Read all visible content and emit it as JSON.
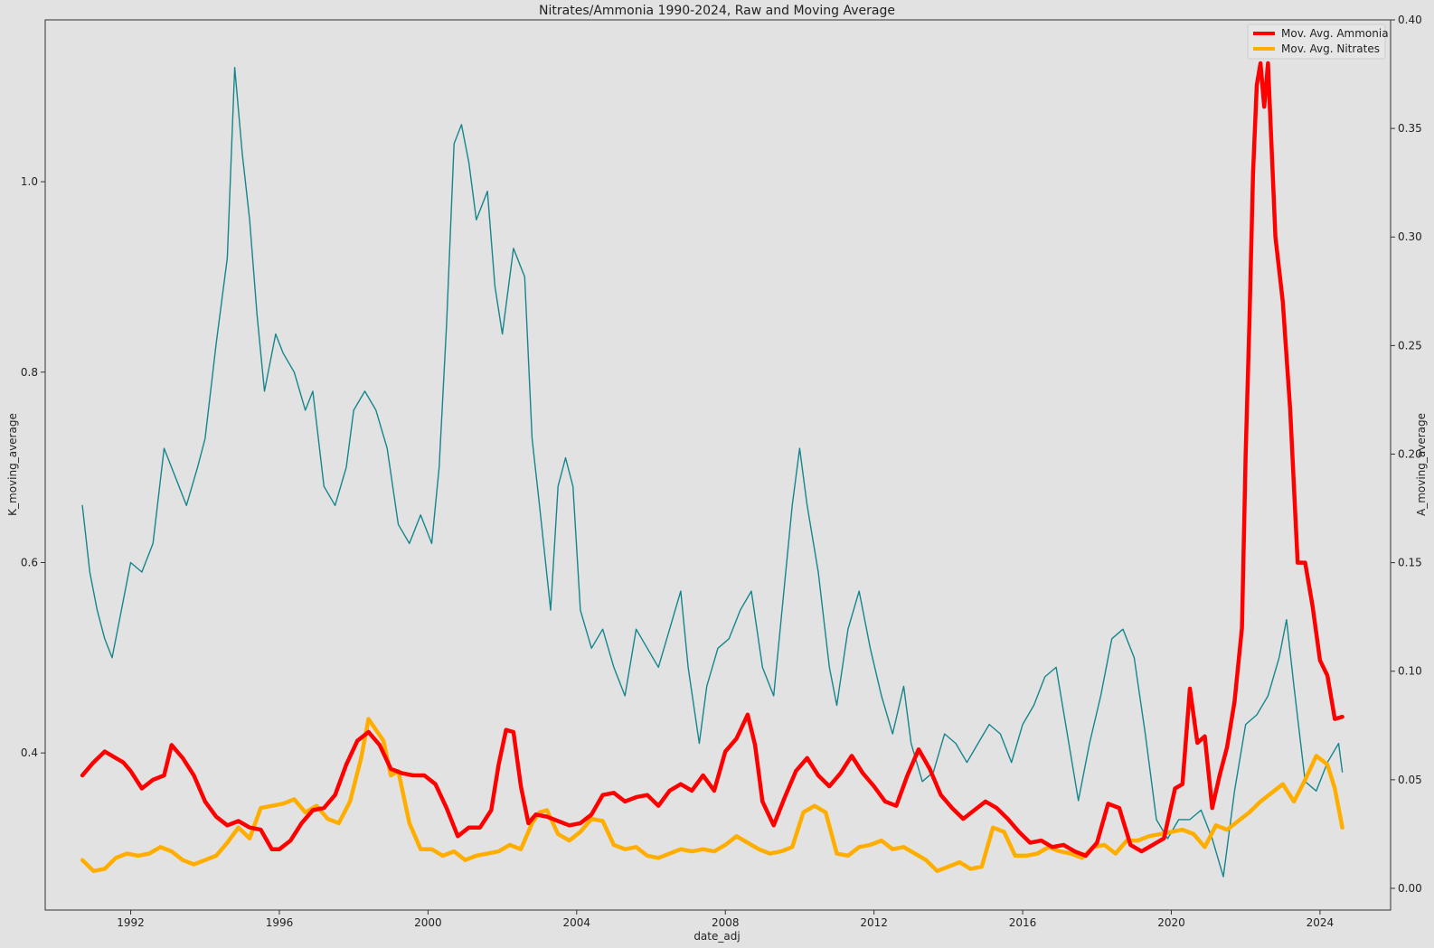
{
  "chart_data": {
    "type": "line",
    "title": "Nitrates/Ammonia 1990-2024, Raw and Moving Average",
    "xlabel": "date_adj",
    "ylabel_left": "K_moving_average",
    "ylabel_right": "A_moving_average",
    "xlim": [
      1989.7,
      2025.9
    ],
    "ylim_left": [
      0.235,
      1.17
    ],
    "ylim_right": [
      -0.01,
      0.4
    ],
    "x_ticks": [
      "1992",
      "1996",
      "2000",
      "2004",
      "2008",
      "2012",
      "2016",
      "2020",
      "2024"
    ],
    "y_left_ticks": [
      "0.4",
      "0.6",
      "0.8",
      "1.0"
    ],
    "y_right_ticks": [
      "0.00",
      "0.05",
      "0.10",
      "0.15",
      "0.20",
      "0.25",
      "0.30",
      "0.35",
      "0.40"
    ],
    "grid": false,
    "legend_position": "top-right",
    "colors": {
      "background": "#e2e2e2",
      "k_raw": "#14868c",
      "ammonia": "#ff0000",
      "nitrates": "#ffae00"
    },
    "series": [
      {
        "key": "k_raw",
        "axis": "left",
        "x": [
          1990.7,
          1990.9,
          1991.1,
          1991.3,
          1991.5,
          1991.7,
          1992.0,
          1992.3,
          1992.6,
          1992.9,
          1993.2,
          1993.5,
          1993.8,
          1994.0,
          1994.3,
          1994.6,
          1994.8,
          1995.0,
          1995.2,
          1995.4,
          1995.6,
          1995.9,
          1996.1,
          1996.4,
          1996.7,
          1996.9,
          1997.2,
          1997.5,
          1997.8,
          1998.0,
          1998.3,
          1998.6,
          1998.9,
          1999.2,
          1999.5,
          1999.8,
          2000.1,
          2000.3,
          2000.5,
          2000.7,
          2000.9,
          2001.1,
          2001.3,
          2001.6,
          2001.8,
          2002.0,
          2002.3,
          2002.6,
          2002.8,
          2003.0,
          2003.3,
          2003.5,
          2003.7,
          2003.9,
          2004.1,
          2004.4,
          2004.7,
          2005.0,
          2005.3,
          2005.6,
          2005.9,
          2006.2,
          2006.5,
          2006.8,
          2007.0,
          2007.3,
          2007.5,
          2007.8,
          2008.1,
          2008.4,
          2008.7,
          2009.0,
          2009.3,
          2009.6,
          2009.8,
          2010.0,
          2010.2,
          2010.5,
          2010.8,
          2011.0,
          2011.3,
          2011.6,
          2011.9,
          2012.2,
          2012.5,
          2012.8,
          2013.0,
          2013.3,
          2013.6,
          2013.9,
          2014.2,
          2014.5,
          2014.8,
          2015.1,
          2015.4,
          2015.7,
          2016.0,
          2016.3,
          2016.6,
          2016.9,
          2017.2,
          2017.5,
          2017.8,
          2018.1,
          2018.4,
          2018.7,
          2019.0,
          2019.3,
          2019.6,
          2019.9,
          2020.2,
          2020.5,
          2020.8,
          2021.1,
          2021.4,
          2021.7,
          2022.0,
          2022.3,
          2022.6,
          2022.9,
          2023.1,
          2023.3,
          2023.6,
          2023.9,
          2024.2,
          2024.5,
          2024.6
        ],
        "y": [
          0.66,
          0.59,
          0.55,
          0.52,
          0.5,
          0.54,
          0.6,
          0.59,
          0.62,
          0.72,
          0.69,
          0.66,
          0.7,
          0.73,
          0.83,
          0.92,
          1.12,
          1.03,
          0.96,
          0.86,
          0.78,
          0.84,
          0.82,
          0.8,
          0.76,
          0.78,
          0.68,
          0.66,
          0.7,
          0.76,
          0.78,
          0.76,
          0.72,
          0.64,
          0.62,
          0.65,
          0.62,
          0.7,
          0.85,
          1.04,
          1.06,
          1.02,
          0.96,
          0.99,
          0.89,
          0.84,
          0.93,
          0.9,
          0.73,
          0.66,
          0.55,
          0.68,
          0.71,
          0.68,
          0.55,
          0.51,
          0.53,
          0.49,
          0.46,
          0.53,
          0.51,
          0.49,
          0.53,
          0.57,
          0.49,
          0.41,
          0.47,
          0.51,
          0.52,
          0.55,
          0.57,
          0.49,
          0.46,
          0.58,
          0.66,
          0.72,
          0.66,
          0.59,
          0.49,
          0.45,
          0.53,
          0.57,
          0.51,
          0.46,
          0.42,
          0.47,
          0.41,
          0.37,
          0.38,
          0.42,
          0.41,
          0.39,
          0.41,
          0.43,
          0.42,
          0.39,
          0.43,
          0.45,
          0.48,
          0.49,
          0.42,
          0.35,
          0.41,
          0.46,
          0.52,
          0.53,
          0.5,
          0.42,
          0.33,
          0.31,
          0.33,
          0.33,
          0.34,
          0.31,
          0.27,
          0.36,
          0.43,
          0.44,
          0.46,
          0.5,
          0.54,
          0.47,
          0.37,
          0.36,
          0.39,
          0.41,
          0.38
        ]
      },
      {
        "name": "Mov. Avg. Ammonia",
        "key": "ammonia",
        "axis": "right",
        "x": [
          1990.7,
          1991.0,
          1991.3,
          1991.6,
          1991.8,
          1992.0,
          1992.3,
          1992.6,
          1992.9,
          1993.1,
          1993.4,
          1993.7,
          1994.0,
          1994.3,
          1994.6,
          1994.9,
          1995.2,
          1995.5,
          1995.8,
          1996.0,
          1996.3,
          1996.6,
          1996.9,
          1997.2,
          1997.5,
          1997.8,
          1998.1,
          1998.4,
          1998.7,
          1999.0,
          1999.3,
          1999.6,
          1999.9,
          2000.2,
          2000.5,
          2000.8,
          2001.1,
          2001.4,
          2001.7,
          2001.9,
          2002.1,
          2002.3,
          2002.5,
          2002.7,
          2002.9,
          2003.2,
          2003.5,
          2003.8,
          2004.1,
          2004.4,
          2004.7,
          2005.0,
          2005.3,
          2005.6,
          2005.9,
          2006.2,
          2006.5,
          2006.8,
          2007.1,
          2007.4,
          2007.7,
          2008.0,
          2008.3,
          2008.6,
          2008.8,
          2009.0,
          2009.3,
          2009.6,
          2009.9,
          2010.2,
          2010.5,
          2010.8,
          2011.1,
          2011.4,
          2011.7,
          2012.0,
          2012.3,
          2012.6,
          2012.9,
          2013.2,
          2013.5,
          2013.8,
          2014.1,
          2014.4,
          2014.7,
          2015.0,
          2015.3,
          2015.6,
          2015.9,
          2016.2,
          2016.5,
          2016.8,
          2017.1,
          2017.4,
          2017.7,
          2018.0,
          2018.3,
          2018.6,
          2018.9,
          2019.2,
          2019.5,
          2019.8,
          2020.1,
          2020.3,
          2020.5,
          2020.7,
          2020.9,
          2021.1,
          2021.3,
          2021.5,
          2021.7,
          2021.9,
          2022.0,
          2022.1,
          2022.2,
          2022.3,
          2022.4,
          2022.5,
          2022.6,
          2022.8,
          2023.0,
          2023.2,
          2023.4,
          2023.6,
          2023.8,
          2024.0,
          2024.2,
          2024.4,
          2024.6
        ],
        "y": [
          0.052,
          0.058,
          0.063,
          0.06,
          0.058,
          0.054,
          0.046,
          0.05,
          0.052,
          0.066,
          0.06,
          0.052,
          0.04,
          0.033,
          0.029,
          0.031,
          0.028,
          0.027,
          0.018,
          0.018,
          0.022,
          0.03,
          0.036,
          0.037,
          0.043,
          0.057,
          0.068,
          0.072,
          0.066,
          0.055,
          0.053,
          0.052,
          0.052,
          0.048,
          0.037,
          0.024,
          0.028,
          0.028,
          0.036,
          0.057,
          0.073,
          0.072,
          0.047,
          0.03,
          0.034,
          0.033,
          0.031,
          0.029,
          0.03,
          0.034,
          0.043,
          0.044,
          0.04,
          0.042,
          0.043,
          0.038,
          0.045,
          0.048,
          0.045,
          0.052,
          0.045,
          0.063,
          0.069,
          0.08,
          0.066,
          0.04,
          0.029,
          0.042,
          0.054,
          0.06,
          0.052,
          0.047,
          0.053,
          0.061,
          0.053,
          0.047,
          0.04,
          0.038,
          0.052,
          0.064,
          0.055,
          0.043,
          0.037,
          0.032,
          0.036,
          0.04,
          0.037,
          0.032,
          0.026,
          0.021,
          0.022,
          0.019,
          0.02,
          0.017,
          0.015,
          0.021,
          0.039,
          0.037,
          0.02,
          0.017,
          0.02,
          0.023,
          0.046,
          0.048,
          0.092,
          0.067,
          0.07,
          0.037,
          0.052,
          0.065,
          0.086,
          0.12,
          0.2,
          0.26,
          0.33,
          0.37,
          0.38,
          0.36,
          0.38,
          0.3,
          0.27,
          0.22,
          0.15,
          0.15,
          0.13,
          0.105,
          0.098,
          0.078,
          0.079
        ]
      },
      {
        "name": "Mov. Avg. Nitrates",
        "key": "nitrates",
        "axis": "right",
        "x": [
          1990.7,
          1991.0,
          1991.3,
          1991.6,
          1991.9,
          1992.2,
          1992.5,
          1992.8,
          1993.1,
          1993.4,
          1993.7,
          1994.0,
          1994.3,
          1994.6,
          1994.9,
          1995.2,
          1995.5,
          1995.8,
          1996.1,
          1996.4,
          1996.7,
          1997.0,
          1997.3,
          1997.6,
          1997.9,
          1998.2,
          1998.4,
          1998.6,
          1998.8,
          1999.0,
          1999.2,
          1999.5,
          1999.8,
          2000.1,
          2000.4,
          2000.7,
          2001.0,
          2001.3,
          2001.6,
          2001.9,
          2002.2,
          2002.5,
          2002.8,
          2003.0,
          2003.2,
          2003.5,
          2003.8,
          2004.1,
          2004.4,
          2004.7,
          2005.0,
          2005.3,
          2005.6,
          2005.9,
          2006.2,
          2006.5,
          2006.8,
          2007.1,
          2007.4,
          2007.7,
          2008.0,
          2008.3,
          2008.6,
          2008.9,
          2009.2,
          2009.5,
          2009.8,
          2010.1,
          2010.4,
          2010.7,
          2011.0,
          2011.3,
          2011.6,
          2011.9,
          2012.2,
          2012.5,
          2012.8,
          2013.1,
          2013.4,
          2013.7,
          2014.0,
          2014.3,
          2014.6,
          2014.9,
          2015.2,
          2015.5,
          2015.8,
          2016.1,
          2016.4,
          2016.7,
          2017.0,
          2017.3,
          2017.6,
          2017.9,
          2018.2,
          2018.5,
          2018.8,
          2019.1,
          2019.4,
          2019.7,
          2020.0,
          2020.3,
          2020.6,
          2020.9,
          2021.2,
          2021.5,
          2021.8,
          2022.1,
          2022.4,
          2022.7,
          2023.0,
          2023.3,
          2023.6,
          2023.9,
          2024.2,
          2024.4,
          2024.6
        ],
        "y": [
          0.013,
          0.008,
          0.009,
          0.014,
          0.016,
          0.015,
          0.016,
          0.019,
          0.017,
          0.013,
          0.011,
          0.013,
          0.015,
          0.021,
          0.028,
          0.023,
          0.037,
          0.038,
          0.039,
          0.041,
          0.035,
          0.038,
          0.032,
          0.03,
          0.04,
          0.06,
          0.078,
          0.073,
          0.068,
          0.052,
          0.054,
          0.03,
          0.018,
          0.018,
          0.015,
          0.017,
          0.013,
          0.015,
          0.016,
          0.017,
          0.02,
          0.018,
          0.03,
          0.035,
          0.036,
          0.025,
          0.022,
          0.026,
          0.032,
          0.031,
          0.02,
          0.018,
          0.019,
          0.015,
          0.014,
          0.016,
          0.018,
          0.017,
          0.018,
          0.017,
          0.02,
          0.024,
          0.021,
          0.018,
          0.016,
          0.017,
          0.019,
          0.035,
          0.038,
          0.035,
          0.016,
          0.015,
          0.019,
          0.02,
          0.022,
          0.018,
          0.019,
          0.016,
          0.013,
          0.008,
          0.01,
          0.012,
          0.009,
          0.01,
          0.028,
          0.026,
          0.015,
          0.015,
          0.016,
          0.019,
          0.017,
          0.016,
          0.014,
          0.019,
          0.02,
          0.016,
          0.022,
          0.022,
          0.024,
          0.025,
          0.026,
          0.027,
          0.025,
          0.019,
          0.029,
          0.027,
          0.031,
          0.035,
          0.04,
          0.044,
          0.048,
          0.04,
          0.05,
          0.061,
          0.057,
          0.046,
          0.028
        ]
      }
    ]
  }
}
